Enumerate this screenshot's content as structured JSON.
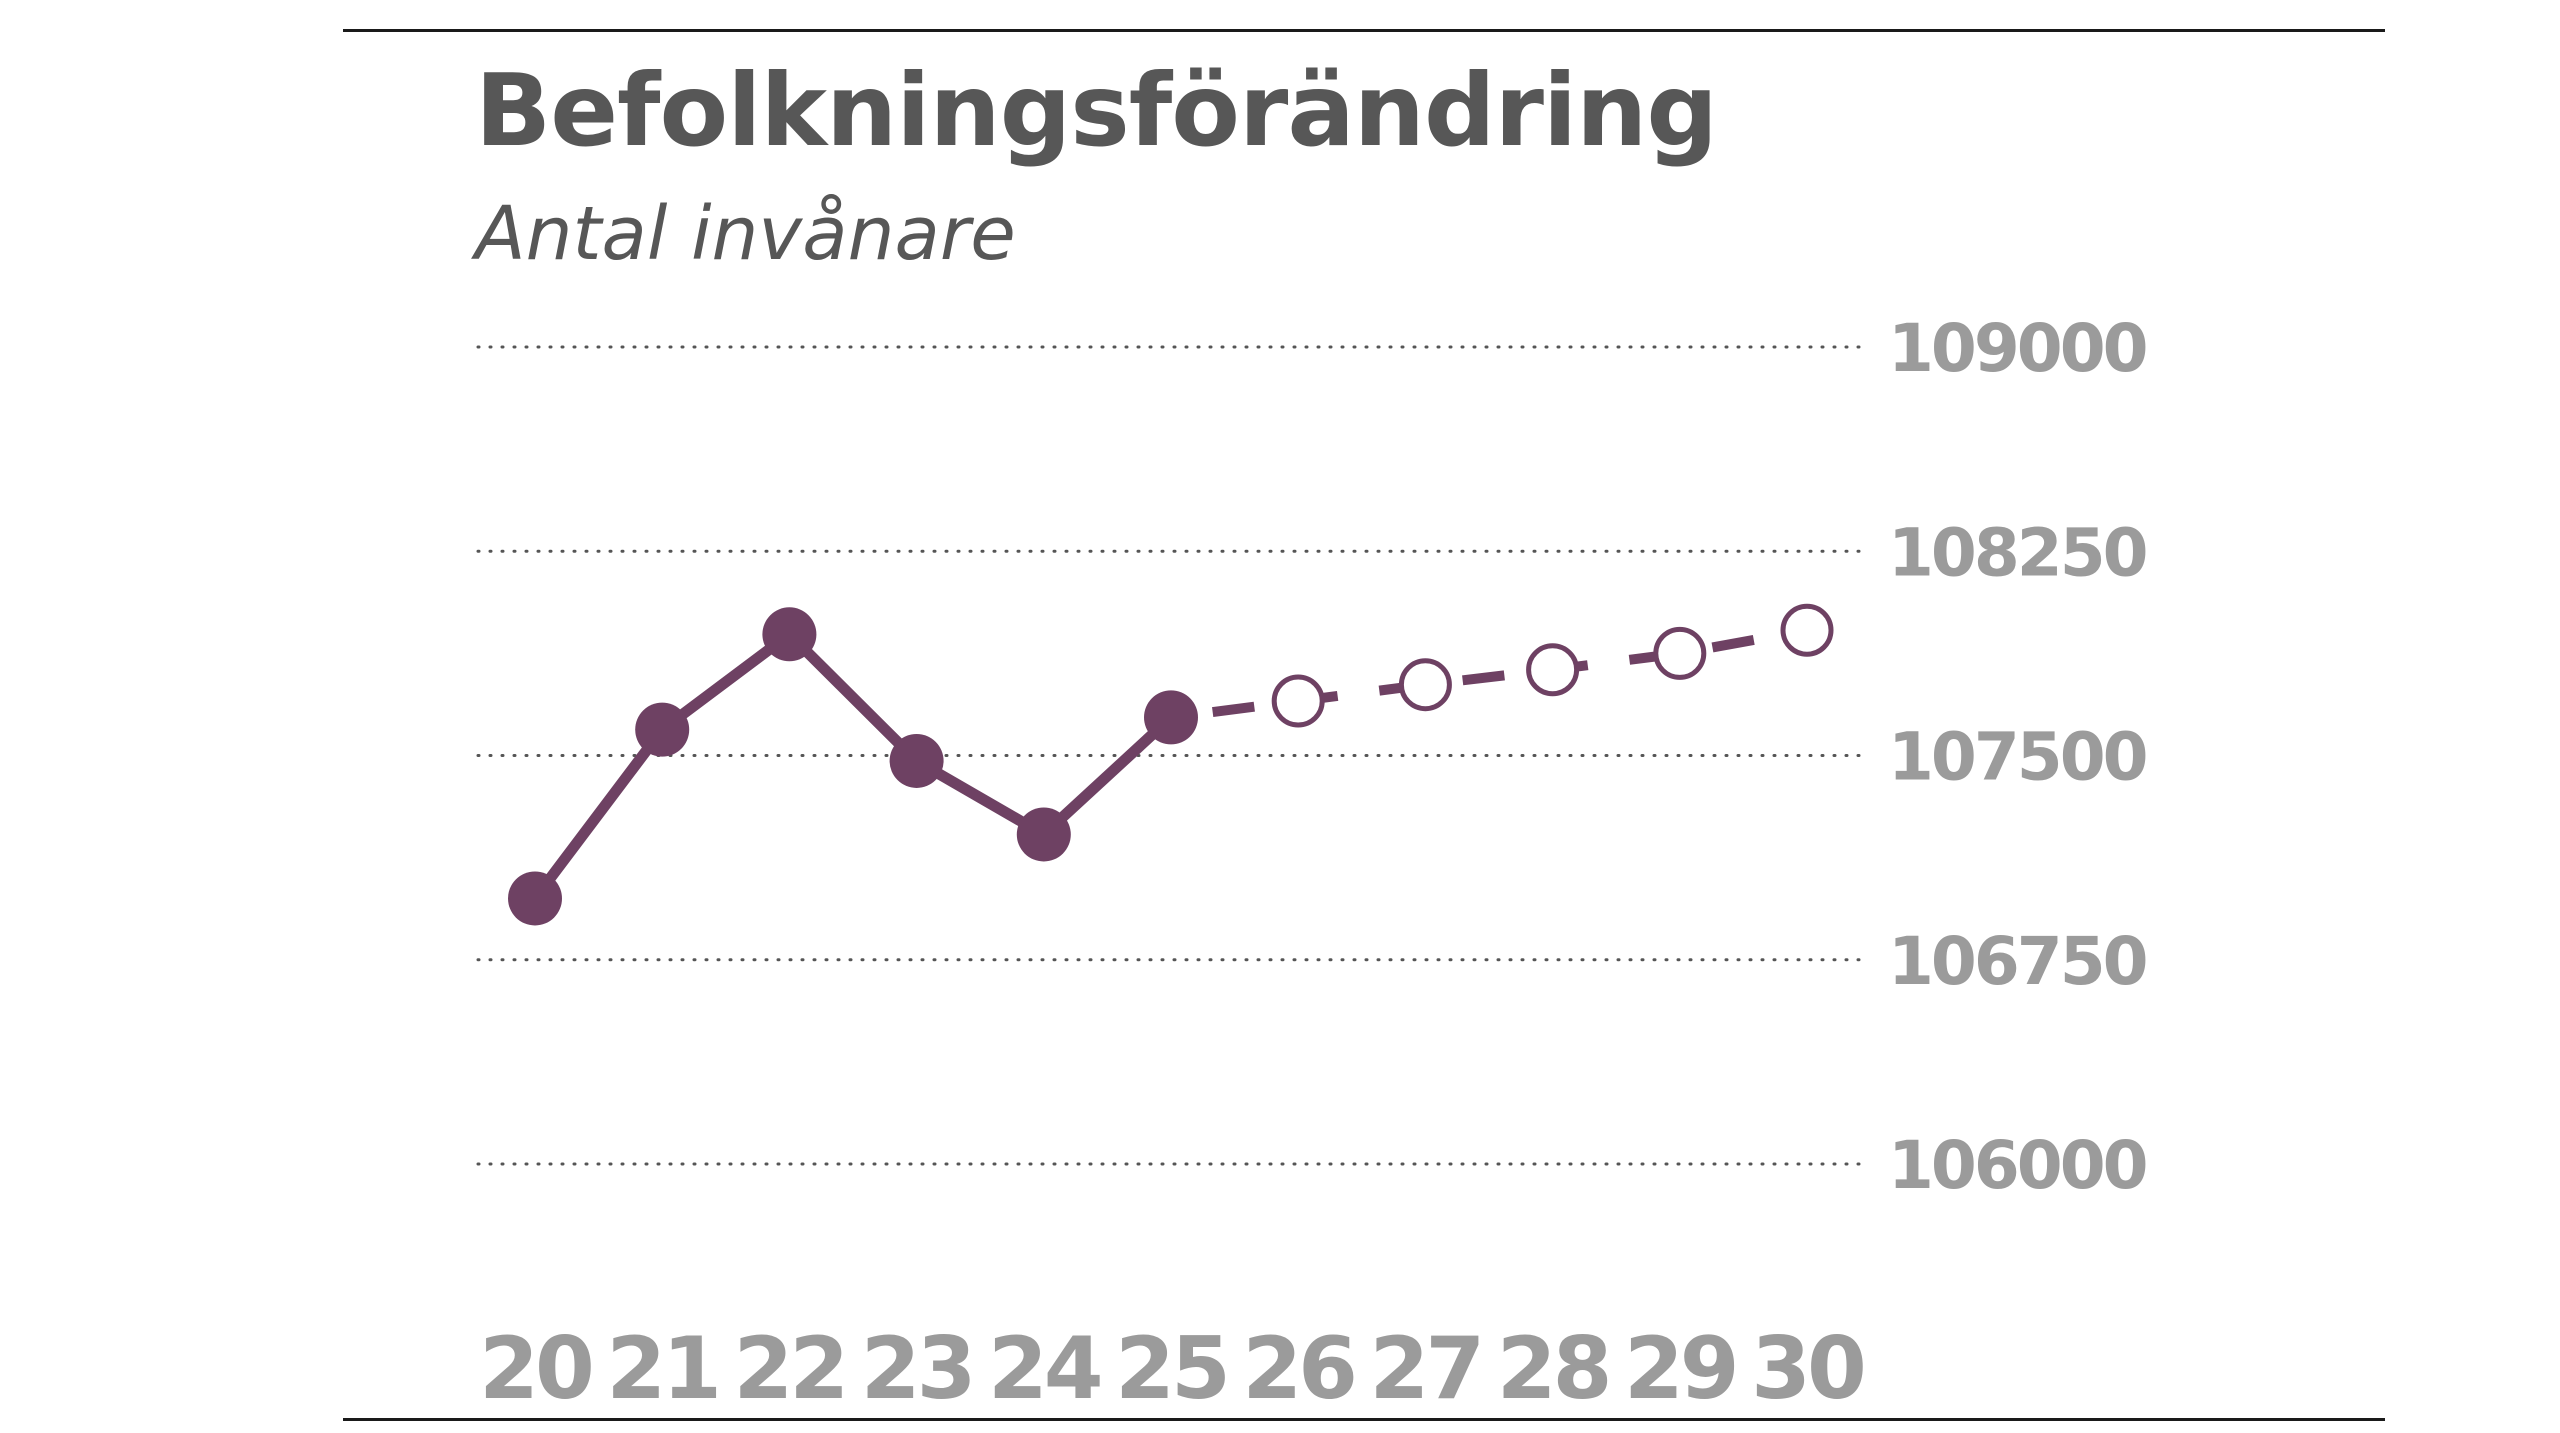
{
  "colors": {
    "series": "#6e4163",
    "title": "#575757",
    "tick": "#9b9b9b",
    "grid": "#555555",
    "rule": "#1a1a1a"
  },
  "chart_data": {
    "type": "line",
    "title": "Befolkningsförändring",
    "subtitle": "Antal invånare",
    "xlabel": "",
    "ylabel": "",
    "categories": [
      "20",
      "21",
      "22",
      "23",
      "24",
      "25",
      "26",
      "27",
      "28",
      "29",
      "30"
    ],
    "series": [
      {
        "style": "solid-filled-markers",
        "x": [
          "20",
          "21",
          "22",
          "23",
          "24",
          "25"
        ],
        "values": [
          106975,
          107595,
          107945,
          107480,
          107210,
          107640
        ]
      },
      {
        "style": "dashed-open-markers",
        "x": [
          "25",
          "26",
          "27",
          "28",
          "29",
          "30"
        ],
        "values": [
          107640,
          107700,
          107760,
          107815,
          107875,
          107960
        ]
      }
    ],
    "yticks": [
      "109000",
      "108250",
      "107500",
      "106750",
      "106000"
    ],
    "ylim": [
      106000,
      109000
    ],
    "y_axis_position": "right",
    "grid": "horizontal-dotted",
    "legend": "none"
  }
}
